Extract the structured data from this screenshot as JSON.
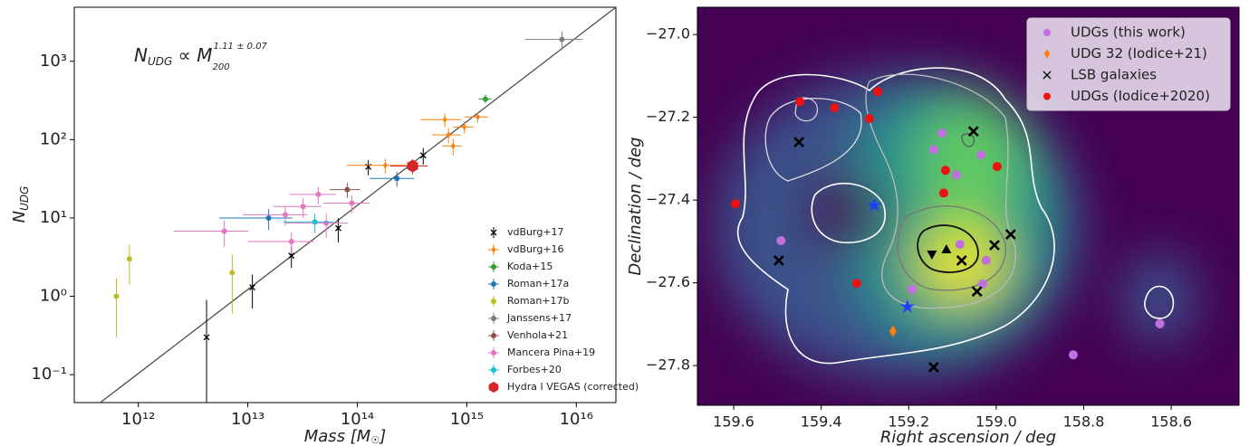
{
  "chart_data": [
    {
      "type": "scatter",
      "x_label": [
        "Mass [M",
        "☉",
        "]"
      ],
      "y_label": [
        "N",
        "UDG"
      ],
      "annotation": [
        "N",
        "UDG",
        " ∝ M",
        "200",
        "1.11 ± 0.07"
      ],
      "log_x": true,
      "log_y": true,
      "xlim": [
        260000000000.0,
        2.3e+16
      ],
      "ylim": [
        0.044,
        4900
      ],
      "xticks": [
        {
          "value": 1000000000000.0,
          "label": "10¹²"
        },
        {
          "value": 10000000000000.0,
          "label": "10¹³"
        },
        {
          "value": 100000000000000.0,
          "label": "10¹⁴"
        },
        {
          "value": 1000000000000000.0,
          "label": "10¹⁵"
        },
        {
          "value": 1e+16,
          "label": "10¹⁶"
        }
      ],
      "yticks": [
        {
          "value": 0.1,
          "label": "10⁻¹"
        },
        {
          "value": 1,
          "label": "10⁰"
        },
        {
          "value": 10,
          "label": "10¹"
        },
        {
          "value": 100,
          "label": "10²"
        },
        {
          "value": 1000,
          "label": "10³"
        }
      ],
      "grid": false,
      "legend": "lower right",
      "fit": {
        "color": "#444444",
        "x": [
          450000000000.0,
          2.3e+16
        ],
        "values": [
          0.044,
          4900
        ]
      },
      "series": [
        {
          "name": "vdBurg+17",
          "color": "#000000",
          "marker": "x",
          "x": [
            4200000000000.0,
            11000000000000.0,
            25000000000000.0,
            67000000000000.0,
            126000000000000.0,
            400000000000000.0
          ],
          "values": [
            0.3,
            1.3,
            3.3,
            7.4,
            45,
            63
          ],
          "yerr": [
            0.6,
            0.6,
            1,
            2.5,
            10,
            15
          ]
        },
        {
          "name": "vdBurg+16",
          "color": "#ff7f0e",
          "marker": "diamond",
          "x": [
            630000000000000.0,
            1260000000000000.0,
            680000000000000.0,
            950000000000000.0,
            750000000000000.0,
            180000000000000.0
          ],
          "values": [
            180,
            195,
            115,
            145,
            83,
            47
          ],
          "xerr": [
            250000000000000.0,
            300000000000000.0,
            200000000000000.0,
            200000000000000.0,
            150000000000000.0,
            100000000000000.0
          ],
          "yerr": [
            35,
            30,
            25,
            25,
            20,
            10
          ]
        },
        {
          "name": "Koda+15",
          "color": "#2ca02c",
          "marker": "circle",
          "x": [
            1480000000000000.0
          ],
          "values": [
            330
          ],
          "xerr": [
            200000000000000.0
          ],
          "yerr": [
            40
          ]
        },
        {
          "name": "Roman+17a",
          "color": "#1f77b4",
          "marker": "circle",
          "x": [
            15500000000000.0,
            230000000000000.0
          ],
          "values": [
            10,
            32
          ],
          "xerr": [
            10000000000000.0,
            100000000000000.0
          ],
          "yerr": [
            3,
            7
          ]
        },
        {
          "name": "Roman+17b",
          "color": "#bcbd22",
          "marker": "circle",
          "x": [
            630000000000.0,
            830000000000.0,
            7200000000000.0
          ],
          "values": [
            1,
            3,
            2
          ],
          "yerr": [
            0.7,
            1.6,
            1.4
          ]
        },
        {
          "name": "Janssens+17",
          "color": "#7f7f7f",
          "marker": "circle",
          "x": [
            7400000000000000.0
          ],
          "values": [
            1900
          ],
          "xerr": [
            4000000000000000.0
          ],
          "yerr": [
            500
          ]
        },
        {
          "name": "Venhola+21",
          "color": "#8c564b",
          "marker": "circle",
          "x": [
            81000000000000.0
          ],
          "values": [
            23
          ],
          "xerr": [
            25000000000000.0
          ],
          "yerr": [
            5
          ]
        },
        {
          "name": "Mancera Pina+19",
          "color": "#e377c2",
          "marker": "circle",
          "x": [
            6100000000000.0,
            25000000000000.0,
            32000000000000.0,
            44000000000000.0,
            22000000000000.0,
            52000000000000.0,
            89000000000000.0
          ],
          "values": [
            6.8,
            5,
            14,
            20,
            11,
            8.6,
            15.5
          ],
          "xerr": [
            4000000000000.0,
            15000000000000.0,
            15000000000000.0,
            20000000000000.0,
            13000000000000.0,
            30000000000000.0,
            40000000000000.0
          ],
          "yerr": [
            2.5,
            1.5,
            4,
            5,
            3,
            3,
            4
          ]
        },
        {
          "name": "Forbes+20",
          "color": "#17becf",
          "marker": "circle",
          "x": [
            41000000000000.0
          ],
          "values": [
            8.9
          ],
          "xerr": [
            20000000000000.0
          ],
          "yerr": [
            2.5
          ]
        },
        {
          "name": "Hydra I VEGAS (corrected)",
          "color": "#d62728",
          "marker": "hexagon",
          "x": [
            320000000000000.0
          ],
          "values": [
            46
          ],
          "xerr": [
            120000000000000.0
          ],
          "yerr": [
            10
          ]
        }
      ]
    },
    {
      "type": "scatter",
      "x_label": "Right ascension / deg",
      "y_label": "Declination / deg",
      "log_x": false,
      "log_y": false,
      "xlim": [
        159.683,
        158.445
      ],
      "ylim": [
        -27.896,
        -26.934
      ],
      "xticks": [
        159.6,
        159.4,
        159.2,
        {
          "value": 159,
          "label": "159.0"
        },
        158.8,
        158.6
      ],
      "yticks": [
        {
          "value": -27,
          "label": "−27.0"
        },
        {
          "value": -27.2,
          "label": "−27.2"
        },
        {
          "value": -27.4,
          "label": "−27.4"
        },
        {
          "value": -27.6,
          "label": "−27.6"
        },
        {
          "value": -27.8,
          "label": "−27.8"
        }
      ],
      "grid": false,
      "legend": "upper right",
      "series": [
        {
          "name": "UDGs (this work)",
          "color": "#c070e0",
          "marker": "circle",
          "x": [
            159.143,
            159.124,
            159.035,
            159.091,
            159.492,
            159.083,
            159.023,
            159.031,
            159.193,
            158.626,
            158.824
          ],
          "values": [
            -27.278,
            -27.238,
            -27.291,
            -27.339,
            -27.498,
            -27.507,
            -27.546,
            -27.603,
            -27.616,
            -27.699,
            -27.774
          ]
        },
        {
          "name": "UDG 32 (Iodice+21)",
          "color": "#ff7f0e",
          "marker": "diamond",
          "x": [
            159.236
          ],
          "values": [
            -27.717
          ]
        },
        {
          "name": "LSB galaxies",
          "color": "#000000",
          "marker": "x",
          "x": [
            159.451,
            159.052,
            159.497,
            159.079,
            159.004,
            158.967,
            159.044,
            159.143
          ],
          "values": [
            -27.26,
            -27.234,
            -27.546,
            -27.546,
            -27.509,
            -27.483,
            -27.621,
            -27.804
          ]
        },
        {
          "name": "UDGs (Iodice+2020)",
          "color": "#ee1111",
          "marker": "circle",
          "x": [
            159.449,
            159.37,
            159.271,
            159.29,
            159.116,
            159.12,
            158.998,
            159.596,
            159.319
          ],
          "values": [
            -27.162,
            -27.177,
            -27.138,
            -27.203,
            -27.328,
            -27.383,
            -27.319,
            -27.409,
            -27.601
          ]
        },
        {
          "color": "#1f3fff",
          "marker": "star",
          "x": [
            159.279,
            159.203
          ],
          "values": [
            -27.413,
            -27.658
          ]
        },
        {
          "color": "#000000",
          "marker": "triangle",
          "x": [
            159.114
          ],
          "values": [
            -27.52
          ]
        },
        {
          "color": "#000000",
          "marker": "triangle-down",
          "x": [
            159.147
          ],
          "values": [
            -27.531
          ]
        }
      ]
    }
  ]
}
